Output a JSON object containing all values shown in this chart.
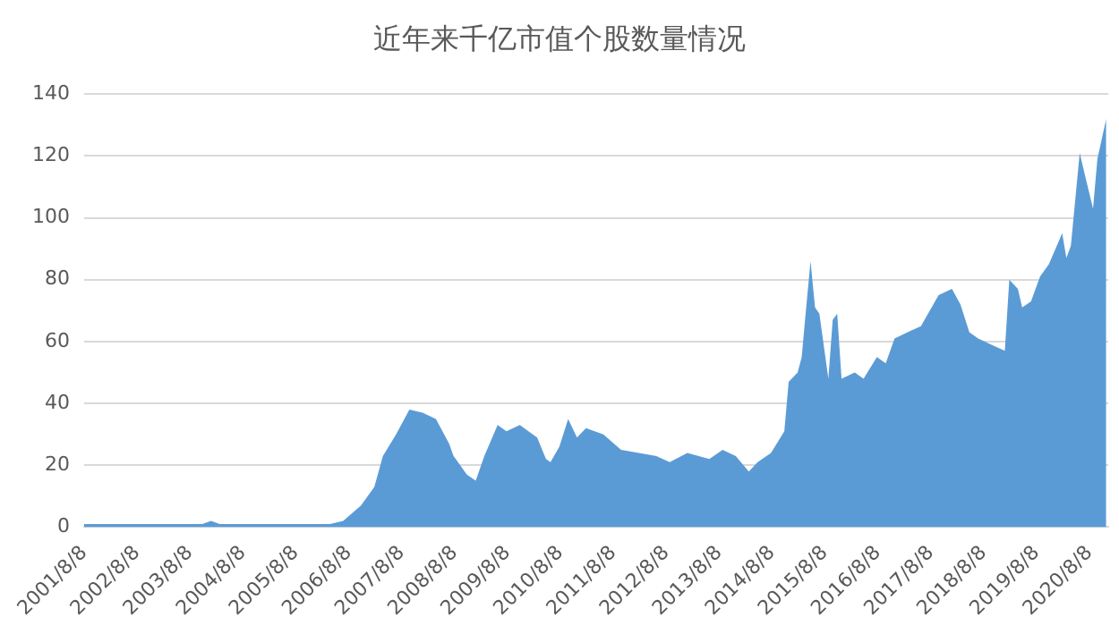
{
  "chart_data": {
    "type": "area",
    "title": "近年来千亿市值个股数量情况",
    "x": [
      "2001-08-08",
      "2003-11",
      "2004-01",
      "2004-03",
      "2006-04",
      "2006-07",
      "2006-11",
      "2007-02",
      "2007-04",
      "2007-07",
      "2007-10",
      "2008-01",
      "2008-04",
      "2008-07",
      "2008-08",
      "2008-11",
      "2009-01",
      "2009-03",
      "2009-06",
      "2009-08",
      "2009-11",
      "2010-03",
      "2010-05",
      "2010-06",
      "2010-08",
      "2010-10",
      "2010-12",
      "2011-02",
      "2011-06",
      "2011-10",
      "2012-02",
      "2012-06",
      "2012-09",
      "2013-01",
      "2013-06",
      "2013-09",
      "2013-12",
      "2014-03",
      "2014-05",
      "2014-08",
      "2014-11",
      "2014-12",
      "2015-02",
      "2015-03",
      "2015-04",
      "2015-05",
      "2015-06",
      "2015-07",
      "2015-09",
      "2015-10",
      "2015-11",
      "2015-12",
      "2016-03",
      "2016-05",
      "2016-08",
      "2016-10",
      "2016-12",
      "2017-03",
      "2017-06",
      "2017-10",
      "2018-01",
      "2018-03",
      "2018-05",
      "2018-07",
      "2018-10",
      "2019-01",
      "2019-02",
      "2019-04",
      "2019-05",
      "2019-07",
      "2019-09",
      "2019-11",
      "2020-02",
      "2020-03",
      "2020-04",
      "2020-06",
      "2020-07",
      "2020-09",
      "2020-10",
      "2020-12"
    ],
    "values": [
      1,
      1,
      2,
      1,
      1,
      2,
      7,
      13,
      23,
      30,
      38,
      37,
      35,
      27,
      23,
      17,
      15,
      23,
      33,
      31,
      33,
      29,
      22,
      21,
      26,
      35,
      29,
      32,
      30,
      25,
      24,
      23,
      21,
      24,
      22,
      25,
      23,
      18,
      21,
      24,
      31,
      47,
      50,
      55,
      71,
      86,
      71,
      69,
      48,
      67,
      69,
      48,
      50,
      48,
      55,
      53,
      61,
      63,
      65,
      75,
      77,
      72,
      63,
      61,
      59,
      57,
      80,
      77,
      71,
      73,
      81,
      85,
      95,
      87,
      91,
      121,
      115,
      103,
      119,
      132
    ],
    "color": "#5b9bd5",
    "xlim": [
      "2001-08-08",
      "2020-12-15"
    ],
    "xticks": [
      {
        "value": "2001-08-08",
        "label": "2001/8/8"
      },
      {
        "value": "2002-08-08",
        "label": "2002/8/8"
      },
      {
        "value": "2003-08-08",
        "label": "2003/8/8"
      },
      {
        "value": "2004-08-08",
        "label": "2004/8/8"
      },
      {
        "value": "2005-08-08",
        "label": "2005/8/8"
      },
      {
        "value": "2006-08-08",
        "label": "2006/8/8"
      },
      {
        "value": "2007-08-08",
        "label": "2007/8/8"
      },
      {
        "value": "2008-08-08",
        "label": "2008/8/8"
      },
      {
        "value": "2009-08-08",
        "label": "2009/8/8"
      },
      {
        "value": "2010-08-08",
        "label": "2010/8/8"
      },
      {
        "value": "2011-08-08",
        "label": "2011/8/8"
      },
      {
        "value": "2012-08-08",
        "label": "2012/8/8"
      },
      {
        "value": "2013-08-08",
        "label": "2013/8/8"
      },
      {
        "value": "2014-08-08",
        "label": "2014/8/8"
      },
      {
        "value": "2015-08-08",
        "label": "2015/8/8"
      },
      {
        "value": "2016-08-08",
        "label": "2016/8/8"
      },
      {
        "value": "2017-08-08",
        "label": "2017/8/8"
      },
      {
        "value": "2018-08-08",
        "label": "2018/8/8"
      },
      {
        "value": "2019-08-08",
        "label": "2019/8/8"
      },
      {
        "value": "2020-08-08",
        "label": "2020/8/8"
      }
    ],
    "ylim": [
      0,
      140
    ],
    "yticks": [
      0,
      20,
      40,
      60,
      80,
      100,
      120,
      140
    ],
    "grid": "y"
  }
}
